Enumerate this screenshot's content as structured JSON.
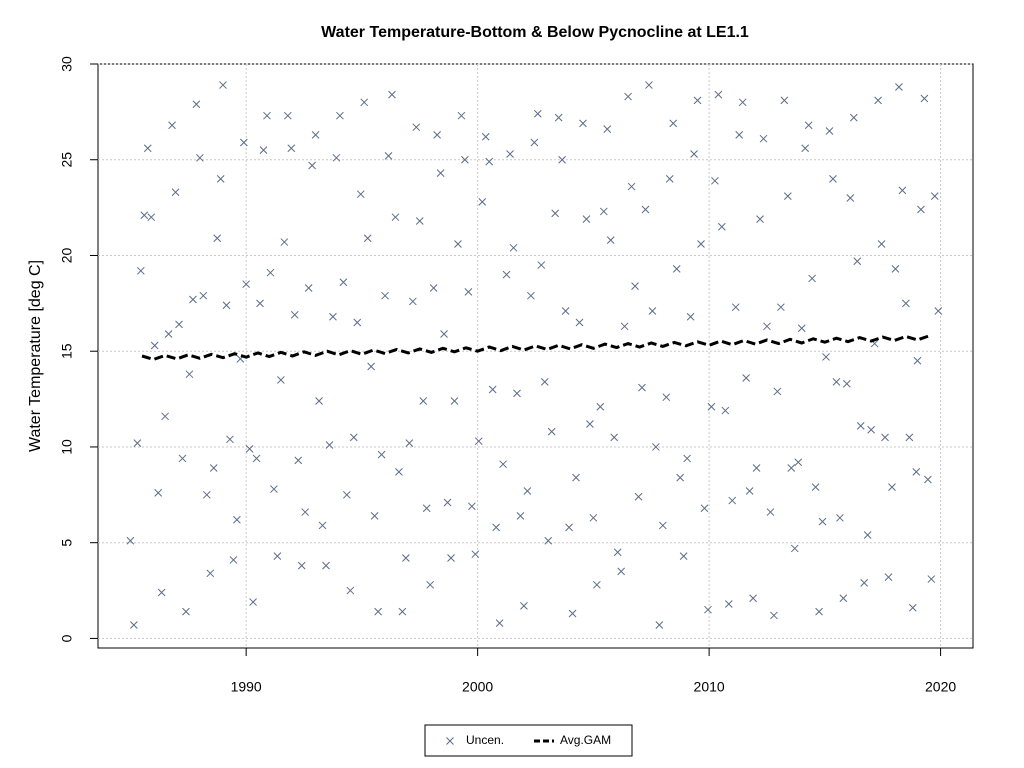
{
  "chart_data": {
    "type": "scatter",
    "title": "Water Temperature-Bottom & Below Pycnocline at LE1.1",
    "ylabel": "Water Temperature [deg C]",
    "xlim": [
      1983.6,
      2021.4
    ],
    "ylim": [
      -0.5,
      30.0
    ],
    "xticks": [
      1990,
      2000,
      2010,
      2020
    ],
    "yticks": [
      0,
      5,
      10,
      15,
      20,
      25,
      30
    ],
    "grid": true,
    "legend": "bottom",
    "series": [
      {
        "name": "Uncen.",
        "type": "scatter",
        "marker": "x",
        "color": "#5b6c8a",
        "x": [
          1985.0,
          1985.15,
          1985.3,
          1985.45,
          1985.6,
          1985.75,
          1985.9,
          1986.05,
          1986.2,
          1986.35,
          1986.5,
          1986.65,
          1986.8,
          1986.95,
          1987.1,
          1987.25,
          1987.4,
          1987.55,
          1987.7,
          1987.85,
          1988.0,
          1988.15,
          1988.3,
          1988.45,
          1988.6,
          1988.75,
          1988.9,
          1989.0,
          1989.15,
          1989.3,
          1989.45,
          1989.6,
          1989.75,
          1989.9,
          1990.0,
          1990.15,
          1990.3,
          1990.45,
          1990.6,
          1990.75,
          1990.9,
          1991.05,
          1991.2,
          1991.35,
          1991.5,
          1991.65,
          1991.8,
          1991.95,
          1992.1,
          1992.25,
          1992.4,
          1992.55,
          1992.7,
          1992.85,
          1993.0,
          1993.15,
          1993.3,
          1993.45,
          1993.6,
          1993.75,
          1993.9,
          1994.05,
          1994.2,
          1994.35,
          1994.5,
          1994.65,
          1994.8,
          1994.95,
          1995.1,
          1995.25,
          1995.4,
          1995.55,
          1995.7,
          1995.85,
          1996.0,
          1996.15,
          1996.3,
          1996.45,
          1996.6,
          1996.75,
          1996.9,
          1997.05,
          1997.2,
          1997.35,
          1997.5,
          1997.65,
          1997.8,
          1997.95,
          1998.1,
          1998.25,
          1998.4,
          1998.55,
          1998.7,
          1998.85,
          1999.0,
          1999.15,
          1999.3,
          1999.45,
          1999.6,
          1999.75,
          1999.9,
          2000.05,
          2000.2,
          2000.35,
          2000.5,
          2000.65,
          2000.8,
          2000.95,
          2001.1,
          2001.25,
          2001.4,
          2001.55,
          2001.7,
          2001.85,
          2002.0,
          2002.15,
          2002.3,
          2002.45,
          2002.6,
          2002.75,
          2002.9,
          2003.05,
          2003.2,
          2003.35,
          2003.5,
          2003.65,
          2003.8,
          2003.95,
          2004.1,
          2004.25,
          2004.4,
          2004.55,
          2004.7,
          2004.85,
          2005.0,
          2005.15,
          2005.3,
          2005.45,
          2005.6,
          2005.75,
          2005.9,
          2006.05,
          2006.2,
          2006.35,
          2006.5,
          2006.65,
          2006.8,
          2006.95,
          2007.1,
          2007.25,
          2007.4,
          2007.55,
          2007.7,
          2007.85,
          2008.0,
          2008.15,
          2008.3,
          2008.45,
          2008.6,
          2008.75,
          2008.9,
          2009.05,
          2009.2,
          2009.35,
          2009.5,
          2009.65,
          2009.8,
          2009.95,
          2010.1,
          2010.25,
          2010.4,
          2010.55,
          2010.7,
          2010.85,
          2011.0,
          2011.15,
          2011.3,
          2011.45,
          2011.6,
          2011.75,
          2011.9,
          2012.05,
          2012.2,
          2012.35,
          2012.5,
          2012.65,
          2012.8,
          2012.95,
          2013.1,
          2013.25,
          2013.4,
          2013.55,
          2013.7,
          2013.85,
          2014.0,
          2014.15,
          2014.3,
          2014.45,
          2014.6,
          2014.75,
          2014.9,
          2015.05,
          2015.2,
          2015.35,
          2015.5,
          2015.65,
          2015.8,
          2015.95,
          2016.1,
          2016.25,
          2016.4,
          2016.55,
          2016.7,
          2016.85,
          2017.0,
          2017.15,
          2017.3,
          2017.45,
          2017.6,
          2017.75,
          2017.9,
          2018.05,
          2018.2,
          2018.35,
          2018.5,
          2018.65,
          2018.8,
          2018.95,
          2019.0,
          2019.15,
          2019.3,
          2019.45,
          2019.6,
          2019.75,
          2019.9
        ],
        "values": [
          5.1,
          0.7,
          10.2,
          19.2,
          22.1,
          25.6,
          22.0,
          15.3,
          7.6,
          2.4,
          11.6,
          15.9,
          26.8,
          23.3,
          16.4,
          9.4,
          1.4,
          13.8,
          17.7,
          27.9,
          25.1,
          17.9,
          7.5,
          3.4,
          8.9,
          20.9,
          24.0,
          28.9,
          17.4,
          10.4,
          4.1,
          6.2,
          14.6,
          25.9,
          18.5,
          9.9,
          1.9,
          9.4,
          17.5,
          25.5,
          27.3,
          19.1,
          7.8,
          4.3,
          13.5,
          20.7,
          27.3,
          25.6,
          16.9,
          9.3,
          3.8,
          6.6,
          18.3,
          24.7,
          26.3,
          12.4,
          5.9,
          3.8,
          10.1,
          16.8,
          25.1,
          27.3,
          18.6,
          7.5,
          2.5,
          10.5,
          16.5,
          23.2,
          28.0,
          20.9,
          14.2,
          6.4,
          1.4,
          9.6,
          17.9,
          25.2,
          28.4,
          22.0,
          8.7,
          1.4,
          4.2,
          10.2,
          17.6,
          26.7,
          21.8,
          12.4,
          6.8,
          2.8,
          18.3,
          26.3,
          24.3,
          15.9,
          7.1,
          4.2,
          12.4,
          20.6,
          27.3,
          25.0,
          18.1,
          6.9,
          4.4,
          10.3,
          22.8,
          26.2,
          24.9,
          13.0,
          5.8,
          0.8,
          9.1,
          19.0,
          25.3,
          20.4,
          12.8,
          6.4,
          1.7,
          7.7,
          17.9,
          25.9,
          27.4,
          19.5,
          13.4,
          5.1,
          10.8,
          22.2,
          27.2,
          25.0,
          17.1,
          5.8,
          1.3,
          8.4,
          16.5,
          26.9,
          21.9,
          11.2,
          6.3,
          2.8,
          12.1,
          22.3,
          26.6,
          20.8,
          10.5,
          4.5,
          3.5,
          16.3,
          28.3,
          23.6,
          18.4,
          7.4,
          13.1,
          22.4,
          28.9,
          17.1,
          10.0,
          0.7,
          5.9,
          12.6,
          24.0,
          26.9,
          19.3,
          8.4,
          4.3,
          9.4,
          16.8,
          25.3,
          28.1,
          20.6,
          6.8,
          1.5,
          12.1,
          23.9,
          28.4,
          21.5,
          11.9,
          1.8,
          7.2,
          17.3,
          26.3,
          28.0,
          13.6,
          7.7,
          2.1,
          8.9,
          21.9,
          26.1,
          16.3,
          6.6,
          1.2,
          12.9,
          17.3,
          28.1,
          23.1,
          8.9,
          4.7,
          9.2,
          16.2,
          25.6,
          26.8,
          18.8,
          7.9,
          1.4,
          6.1,
          14.7,
          26.5,
          24.0,
          13.4,
          6.3,
          2.1,
          13.3,
          23.0,
          27.2,
          19.7,
          11.1,
          2.9,
          5.4,
          10.9,
          15.4,
          28.1,
          20.6,
          10.5,
          3.2,
          7.9,
          19.3,
          28.8,
          23.4,
          17.5,
          10.5,
          1.6,
          8.7,
          14.5,
          22.4,
          28.2,
          8.3,
          3.1,
          23.1,
          17.1
        ]
      },
      {
        "name": "Avg.GAM",
        "type": "line",
        "dash": true,
        "color": "#000000",
        "x": [
          1985.5,
          1986.0,
          1986.5,
          1987.0,
          1987.5,
          1988.0,
          1988.5,
          1989.0,
          1989.5,
          1990.0,
          1990.5,
          1991.0,
          1991.5,
          1992.0,
          1992.5,
          1993.0,
          1993.5,
          1994.0,
          1994.5,
          1995.0,
          1995.5,
          1996.0,
          1996.5,
          1997.0,
          1997.5,
          1998.0,
          1998.5,
          1999.0,
          1999.5,
          2000.0,
          2000.5,
          2001.0,
          2001.5,
          2002.0,
          2002.5,
          2003.0,
          2003.5,
          2004.0,
          2004.5,
          2005.0,
          2005.5,
          2006.0,
          2006.5,
          2007.0,
          2007.5,
          2008.0,
          2008.5,
          2009.0,
          2009.5,
          2010.0,
          2010.5,
          2011.0,
          2011.5,
          2012.0,
          2012.5,
          2013.0,
          2013.5,
          2014.0,
          2014.5,
          2015.0,
          2015.5,
          2016.0,
          2016.5,
          2017.0,
          2017.5,
          2018.0,
          2018.5,
          2019.0,
          2019.5
        ],
        "values": [
          14.75,
          14.57,
          14.78,
          14.6,
          14.81,
          14.63,
          14.84,
          14.66,
          14.87,
          14.69,
          14.91,
          14.72,
          14.94,
          14.75,
          14.97,
          14.78,
          15.0,
          14.81,
          15.03,
          14.84,
          15.06,
          14.88,
          15.09,
          14.91,
          15.12,
          14.94,
          15.15,
          14.97,
          15.18,
          15.0,
          15.22,
          15.03,
          15.25,
          15.06,
          15.28,
          15.09,
          15.31,
          15.12,
          15.34,
          15.15,
          15.37,
          15.19,
          15.4,
          15.22,
          15.43,
          15.25,
          15.46,
          15.28,
          15.49,
          15.31,
          15.53,
          15.34,
          15.56,
          15.37,
          15.59,
          15.4,
          15.62,
          15.43,
          15.65,
          15.47,
          15.68,
          15.5,
          15.71,
          15.53,
          15.74,
          15.56,
          15.77,
          15.59,
          15.8
        ]
      }
    ]
  }
}
